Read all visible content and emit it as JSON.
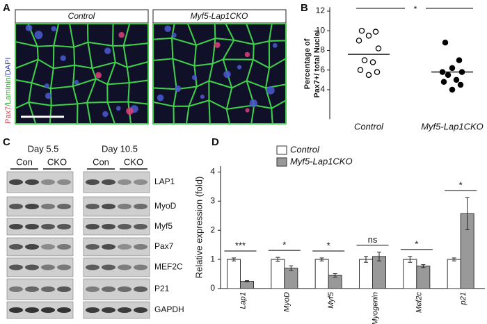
{
  "panels": {
    "a": "A",
    "b": "B",
    "c": "C",
    "d": "D"
  },
  "figure_a": {
    "headers": [
      "Control",
      "Myf5-Lap1CKO"
    ],
    "stain_label": [
      "Pax7",
      "/Laminin",
      "/DAPI"
    ]
  },
  "figure_c": {
    "days": [
      "Day 5.5",
      "Day 10.5"
    ],
    "lanes": [
      "Con",
      "CKO",
      "Con",
      "CKO"
    ],
    "proteins": [
      "LAP1",
      "MyoD",
      "Myf5",
      "Pax7",
      "MEF2C",
      "P21",
      "GAPDH"
    ]
  },
  "chart_data": [
    {
      "type": "scatter",
      "ylabel": [
        "Percentage of",
        "Pax7+/ total Nuclei"
      ],
      "categories": [
        "Control",
        "Myf5-Lap1CKO"
      ],
      "groups": [
        {
          "values": [
            10.0,
            9.9,
            9.5,
            9.0,
            8.2,
            7.0,
            6.8,
            6.0,
            5.8,
            5.5
          ],
          "mean": 7.6,
          "fill": "#ffffff"
        },
        {
          "values": [
            8.8,
            7.0,
            6.2,
            5.8,
            5.8,
            5.5,
            5.0,
            4.8,
            4.5,
            4.0
          ],
          "mean": 5.8,
          "fill": "#000000"
        }
      ],
      "ylim": [
        1,
        12.4
      ],
      "yticks": [
        4,
        6,
        8,
        10,
        12
      ],
      "annotation": "*"
    },
    {
      "type": "bar",
      "ylabel": "Relative expression (fold)",
      "categories": [
        "Lap1",
        "MyoD",
        "Myf5",
        "Myogenin",
        "Mef2c",
        "p21"
      ],
      "series": [
        {
          "name": "Control",
          "color": "#ffffff",
          "values": [
            1.0,
            1.0,
            1.0,
            1.0,
            1.0,
            1.0
          ],
          "errors": [
            0.05,
            0.07,
            0.05,
            0.1,
            0.1,
            0.05
          ]
        },
        {
          "name": "Myf5-Lap1CKO",
          "color": "#999999",
          "values": [
            0.25,
            0.7,
            0.45,
            1.1,
            0.77,
            2.57
          ],
          "errors": [
            0.02,
            0.08,
            0.06,
            0.15,
            0.05,
            0.55
          ]
        }
      ],
      "significance": [
        "***",
        "*",
        "*",
        "ns",
        "*",
        "*"
      ],
      "ylim": [
        0,
        4.2
      ],
      "yticks": [
        0,
        1,
        2,
        3,
        4
      ]
    }
  ]
}
